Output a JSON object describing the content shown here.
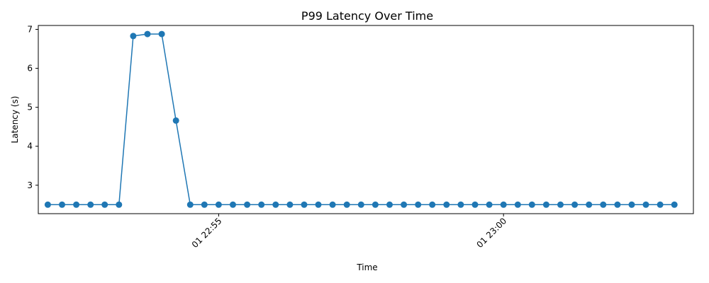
{
  "chart_data": {
    "type": "line",
    "title": "P99 Latency Over Time",
    "xlabel": "Time",
    "ylabel": "Latency (s)",
    "grid": false,
    "x": [
      "22:52:00",
      "22:52:15",
      "22:52:30",
      "22:52:45",
      "22:53:00",
      "22:53:15",
      "22:53:30",
      "22:53:45",
      "22:54:00",
      "22:54:15",
      "22:54:30",
      "22:54:45",
      "22:55:00",
      "22:55:15",
      "22:55:30",
      "22:55:45",
      "22:56:00",
      "22:56:15",
      "22:56:30",
      "22:56:45",
      "22:57:00",
      "22:57:15",
      "22:57:30",
      "22:57:45",
      "22:58:00",
      "22:58:15",
      "22:58:30",
      "22:58:45",
      "22:59:00",
      "22:59:15",
      "22:59:30",
      "22:59:45",
      "23:00:00",
      "23:00:15",
      "23:00:30",
      "23:00:45",
      "23:01:00",
      "23:01:15",
      "23:01:30",
      "23:01:45",
      "23:02:00",
      "23:02:15",
      "23:02:30",
      "23:02:45",
      "23:03:00"
    ],
    "series": [
      {
        "color": "#1f77b4",
        "values": [
          2.5,
          2.5,
          2.5,
          2.5,
          2.5,
          2.5,
          6.83,
          6.88,
          6.88,
          4.66,
          2.5,
          2.5,
          2.5,
          2.5,
          2.5,
          2.5,
          2.5,
          2.5,
          2.5,
          2.5,
          2.5,
          2.5,
          2.5,
          2.5,
          2.5,
          2.5,
          2.5,
          2.5,
          2.5,
          2.5,
          2.5,
          2.5,
          2.5,
          2.5,
          2.5,
          2.5,
          2.5,
          2.5,
          2.5,
          2.5,
          2.5,
          2.5,
          2.5,
          2.5,
          2.5
        ]
      }
    ],
    "xlim": [
      "22:51:50",
      "23:03:20"
    ],
    "ylim": [
      2.27,
      7.1
    ],
    "yticks": [
      3,
      4,
      5,
      6,
      7
    ],
    "xticks": [
      "22:55:00",
      "23:00:00"
    ],
    "xtick_labels": [
      "01 22:55",
      "01 23:00"
    ]
  }
}
